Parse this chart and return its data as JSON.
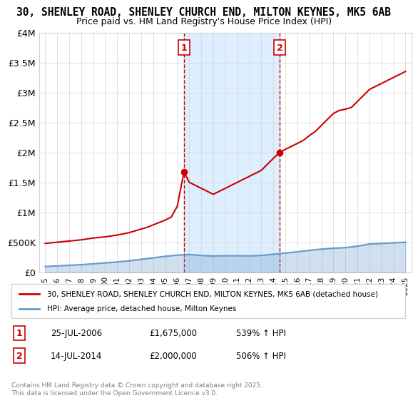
{
  "title": "30, SHENLEY ROAD, SHENLEY CHURCH END, MILTON KEYNES, MK5 6AB",
  "subtitle": "Price paid vs. HM Land Registry's House Price Index (HPI)",
  "legend_line1": "30, SHENLEY ROAD, SHENLEY CHURCH END, MILTON KEYNES, MK5 6AB (detached house)",
  "legend_line2": "HPI: Average price, detached house, Milton Keynes",
  "footer": "Contains HM Land Registry data © Crown copyright and database right 2025.\nThis data is licensed under the Open Government Licence v3.0.",
  "red_color": "#cc0000",
  "blue_color": "#6699cc",
  "shading_color": "#ddeeff",
  "marker1_date": 2006.56,
  "marker2_date": 2014.54,
  "annotation1": [
    "1",
    "25-JUL-2006",
    "£1,675,000",
    "539% ↑ HPI"
  ],
  "annotation2": [
    "2",
    "14-JUL-2014",
    "£2,000,000",
    "506% ↑ HPI"
  ],
  "ylim": [
    0,
    4000000
  ],
  "yticks": [
    0,
    500000,
    1000000,
    1500000,
    2000000,
    2500000,
    3000000,
    3500000,
    4000000
  ],
  "ytick_labels": [
    "£0",
    "£500K",
    "£1M",
    "£1.5M",
    "£2M",
    "£2.5M",
    "£3M",
    "£3.5M",
    "£4M"
  ],
  "xlim_start": 1994.5,
  "xlim_end": 2025.5,
  "xticks": [
    1995,
    1996,
    1997,
    1998,
    1999,
    2000,
    2001,
    2002,
    2003,
    2004,
    2005,
    2006,
    2007,
    2008,
    2009,
    2010,
    2011,
    2012,
    2013,
    2014,
    2015,
    2016,
    2017,
    2018,
    2019,
    2020,
    2021,
    2022,
    2023,
    2024,
    2025
  ],
  "red_x": [
    1995.0,
    1995.5,
    1996.0,
    1996.5,
    1997.0,
    1997.5,
    1998.0,
    1998.5,
    1999.0,
    1999.5,
    2000.0,
    2000.5,
    2001.0,
    2001.5,
    2002.0,
    2002.5,
    2003.0,
    2003.5,
    2004.0,
    2004.5,
    2005.0,
    2005.5,
    2006.0,
    2006.56,
    2007.0,
    2007.5,
    2008.0,
    2008.5,
    2009.0,
    2009.5,
    2010.0,
    2010.5,
    2011.0,
    2011.5,
    2012.0,
    2012.5,
    2013.0,
    2013.5,
    2014.0,
    2014.54,
    2015.0,
    2015.5,
    2016.0,
    2016.5,
    2017.0,
    2017.5,
    2018.0,
    2018.5,
    2019.0,
    2019.5,
    2020.0,
    2020.5,
    2021.0,
    2021.5,
    2022.0,
    2022.5,
    2023.0,
    2023.5,
    2024.0,
    2024.5,
    2025.0
  ],
  "red_y": [
    480000,
    490000,
    500000,
    510000,
    520000,
    530000,
    540000,
    555000,
    570000,
    580000,
    590000,
    605000,
    620000,
    640000,
    660000,
    690000,
    720000,
    750000,
    790000,
    830000,
    870000,
    920000,
    1100000,
    1675000,
    1500000,
    1450000,
    1400000,
    1350000,
    1300000,
    1350000,
    1400000,
    1450000,
    1500000,
    1550000,
    1600000,
    1650000,
    1700000,
    1800000,
    1900000,
    2000000,
    2050000,
    2100000,
    2150000,
    2200000,
    2280000,
    2350000,
    2450000,
    2550000,
    2650000,
    2700000,
    2720000,
    2750000,
    2850000,
    2950000,
    3050000,
    3100000,
    3150000,
    3200000,
    3250000,
    3300000,
    3350000
  ],
  "blue_x": [
    1995.0,
    1996.0,
    1997.0,
    1998.0,
    1999.0,
    2000.0,
    2001.0,
    2002.0,
    2003.0,
    2004.0,
    2005.0,
    2006.0,
    2007.0,
    2008.0,
    2009.0,
    2010.0,
    2011.0,
    2012.0,
    2013.0,
    2014.0,
    2015.0,
    2016.0,
    2017.0,
    2018.0,
    2019.0,
    2020.0,
    2021.0,
    2022.0,
    2023.0,
    2024.0,
    2025.0
  ],
  "blue_y": [
    95000,
    105000,
    115000,
    125000,
    140000,
    155000,
    170000,
    190000,
    215000,
    240000,
    265000,
    285000,
    295000,
    280000,
    270000,
    275000,
    275000,
    272000,
    280000,
    300000,
    320000,
    340000,
    365000,
    385000,
    400000,
    410000,
    435000,
    470000,
    480000,
    490000,
    500000
  ]
}
